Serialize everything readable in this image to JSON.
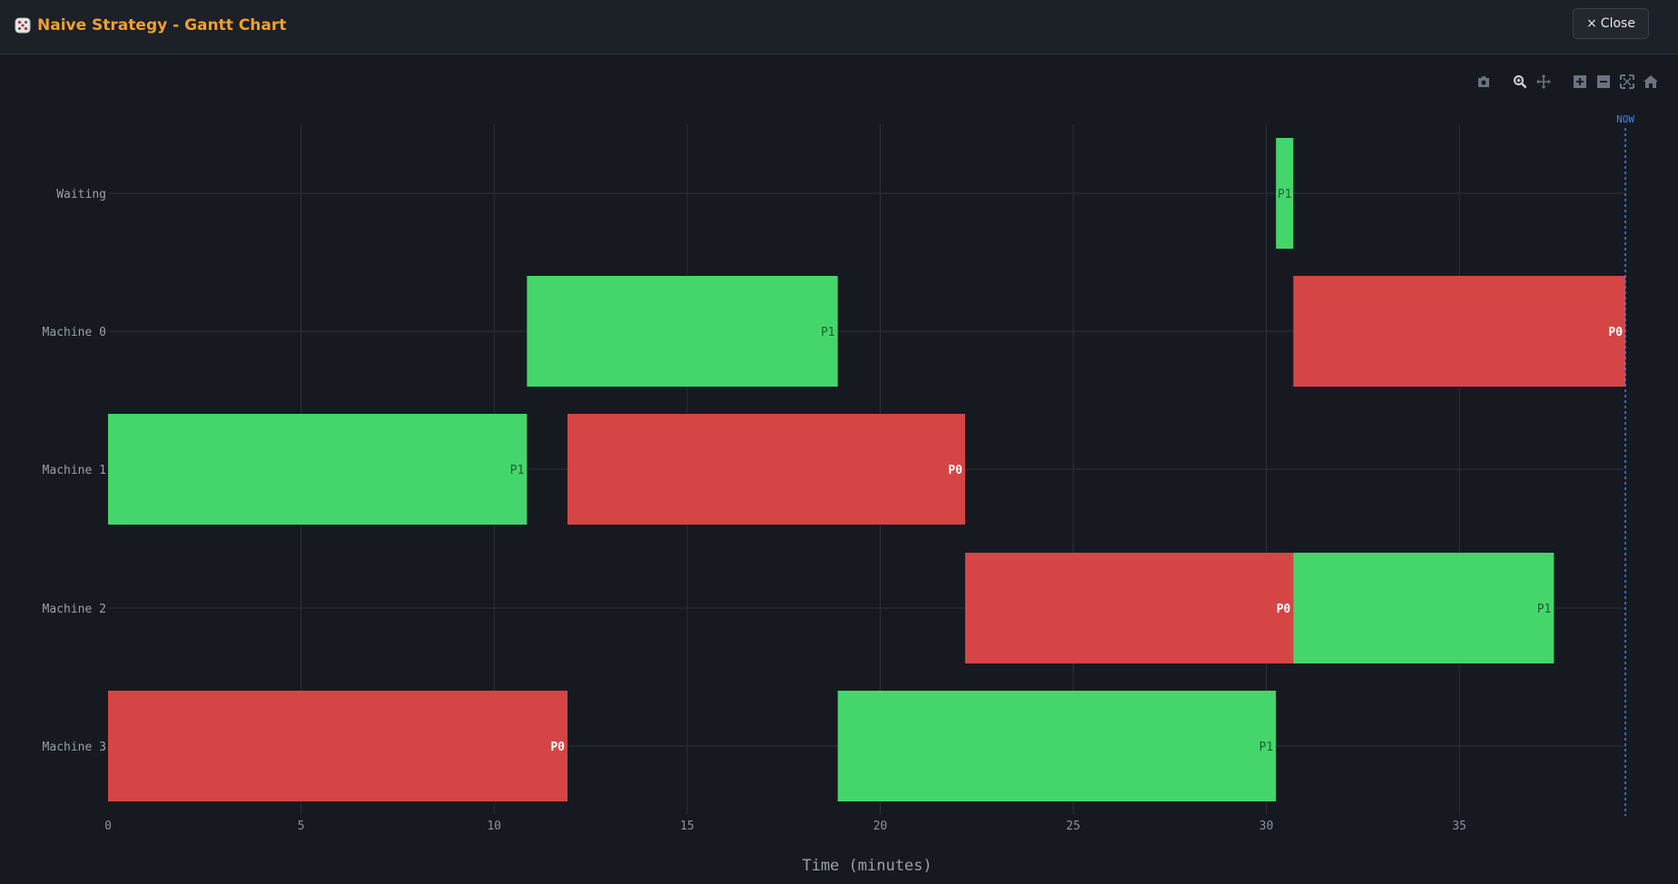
{
  "header": {
    "title": "Naive Strategy - Gantt Chart",
    "close_label": "Close",
    "close_glyph": "×",
    "icon": "dice-icon"
  },
  "modebar": {
    "icons": [
      "camera-icon",
      "zoom-icon",
      "pan-icon",
      "zoom-in-icon",
      "zoom-out-icon",
      "autoscale-icon",
      "home-icon"
    ],
    "active": "zoom-icon"
  },
  "colors": {
    "P0": "#d64545",
    "P1": "#44d66b",
    "now_line": "#3b82f6",
    "title": "#f0a030"
  },
  "chart_data": {
    "type": "gantt",
    "xlabel": "Time (minutes)",
    "ylabel": "",
    "xlim": [
      0,
      39.3
    ],
    "xticks": [
      0,
      5,
      10,
      15,
      20,
      25,
      30,
      35
    ],
    "rows": [
      "Waiting",
      "Machine 0",
      "Machine 1",
      "Machine 2",
      "Machine 3"
    ],
    "grid": true,
    "now": {
      "label": "NOW",
      "x": 39.3
    },
    "tasks": [
      {
        "row": "Waiting",
        "job": "P1",
        "start": 30.25,
        "end": 30.7
      },
      {
        "row": "Machine 0",
        "job": "P1",
        "start": 10.85,
        "end": 18.9
      },
      {
        "row": "Machine 0",
        "job": "P0",
        "start": 30.7,
        "end": 39.3
      },
      {
        "row": "Machine 1",
        "job": "P1",
        "start": 0,
        "end": 10.85
      },
      {
        "row": "Machine 1",
        "job": "P0",
        "start": 11.9,
        "end": 22.2
      },
      {
        "row": "Machine 2",
        "job": "P0",
        "start": 22.2,
        "end": 30.7
      },
      {
        "row": "Machine 2",
        "job": "P1",
        "start": 30.7,
        "end": 37.45
      },
      {
        "row": "Machine 3",
        "job": "P0",
        "start": 0,
        "end": 11.9
      },
      {
        "row": "Machine 3",
        "job": "P1",
        "start": 18.9,
        "end": 30.25
      }
    ]
  }
}
